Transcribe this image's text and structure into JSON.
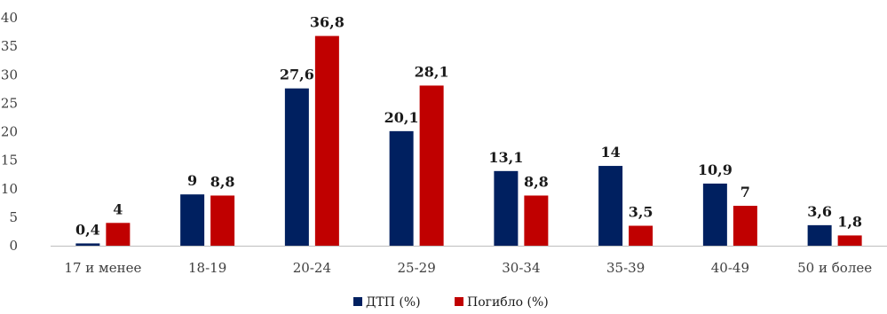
{
  "chart_data": {
    "type": "bar",
    "title": "",
    "xlabel": "",
    "ylabel": "",
    "categories": [
      "17 и менее",
      "18-19",
      "20-24",
      "25-29",
      "30-34",
      "35-39",
      "40-49",
      "50 и более"
    ],
    "series": [
      {
        "name": "ДТП (%)",
        "color": "#002060",
        "values": [
          0.4,
          9,
          27.6,
          20.1,
          13.1,
          14,
          10.9,
          3.6
        ],
        "labels": [
          "0,4",
          "9",
          "27,6",
          "20,1",
          "13,1",
          "14",
          "10,9",
          "3,6"
        ]
      },
      {
        "name": "Погибло (%)",
        "color": "#c00000",
        "values": [
          4,
          8.8,
          36.8,
          28.1,
          8.8,
          3.5,
          7,
          1.8
        ],
        "labels": [
          "4",
          "8,8",
          "36,8",
          "28,1",
          "8,8",
          "3,5",
          "7",
          "1,8"
        ]
      }
    ],
    "ylim": [
      0,
      40
    ],
    "yticks": [
      "0",
      "5",
      "10",
      "15",
      "20",
      "25",
      "30",
      "35",
      "40"
    ],
    "grid": false,
    "legend": "bottom-center"
  }
}
